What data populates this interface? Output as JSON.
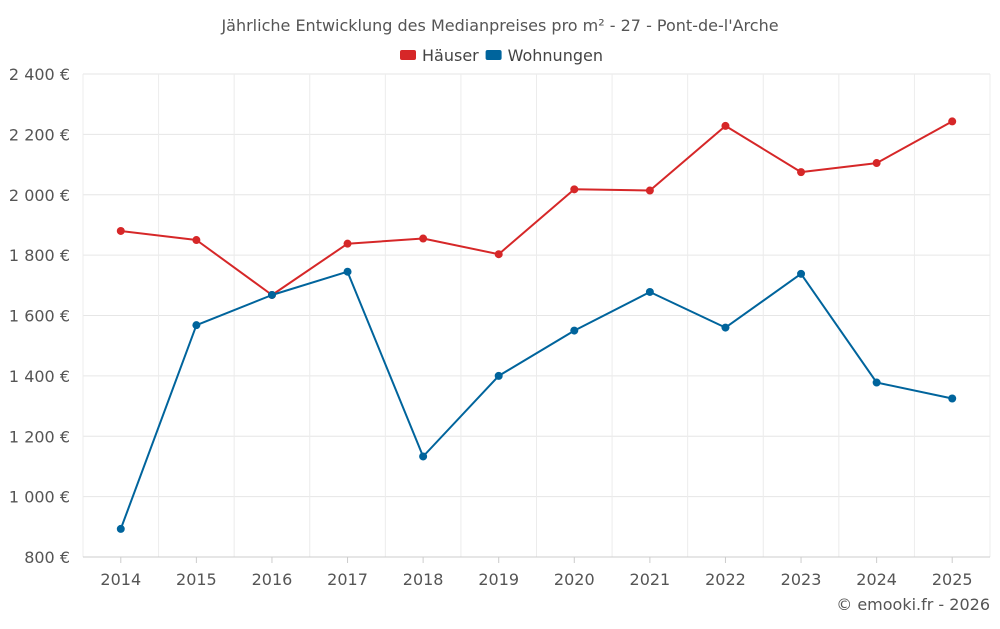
{
  "chart_data": {
    "type": "line",
    "title": "Jährliche Entwicklung des Medianpreises pro m² - 27 - Pont-de-l'Arche",
    "xlabel": "",
    "ylabel": "",
    "categories": [
      "2014",
      "2015",
      "2016",
      "2017",
      "2018",
      "2019",
      "2020",
      "2021",
      "2022",
      "2023",
      "2024",
      "2025"
    ],
    "series": [
      {
        "name": "Häuser",
        "color": "#d62728",
        "values": [
          1880,
          1850,
          1668,
          1838,
          1855,
          1803,
          2018,
          2014,
          2228,
          2075,
          2105,
          2243
        ]
      },
      {
        "name": "Wohnungen",
        "color": "#00649c",
        "values": [
          893,
          1568,
          1668,
          1745,
          1133,
          1400,
          1550,
          1678,
          1560,
          1738,
          1378,
          1325
        ]
      }
    ],
    "ylim": [
      800,
      2400
    ],
    "yticks": [
      800,
      1000,
      1200,
      1400,
      1600,
      1800,
      2000,
      2200,
      2400
    ],
    "ytick_labels": [
      "800 €",
      "1 000 €",
      "1 200 €",
      "1 400 €",
      "1 600 €",
      "1 800 €",
      "2 000 €",
      "2 200 €",
      "2 400 €"
    ],
    "legend_position": "top-center",
    "grid": true
  },
  "credit": "© emooki.fr - 2026"
}
